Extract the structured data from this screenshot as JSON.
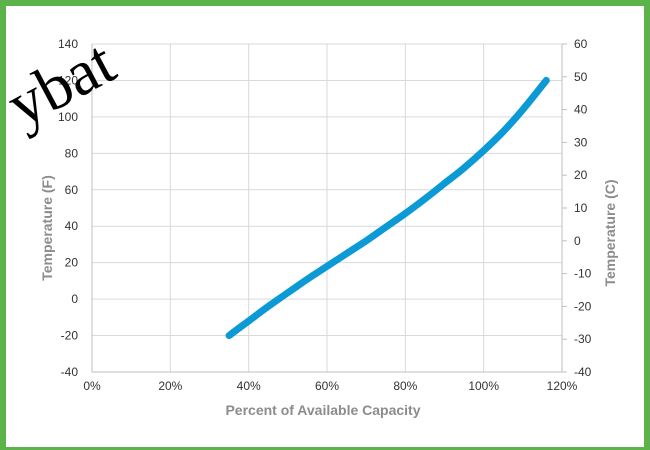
{
  "colors": {
    "frame": "#5cb34a",
    "series": "#0b9ad6",
    "grid": "#d9d9d9",
    "axis": "#bfbfbf",
    "watermark": "#000000"
  },
  "watermark": {
    "text": "ybat"
  },
  "chart_data": {
    "type": "line",
    "title": "",
    "xlabel": "Percent of Available Capacity",
    "ylabel": "Temperature (F)",
    "y2label": "Temperature (C)",
    "xlim": [
      0,
      120
    ],
    "ylim": [
      -40,
      140
    ],
    "y2lim": [
      -40,
      60
    ],
    "x_ticks": [
      0,
      20,
      40,
      60,
      80,
      100,
      120
    ],
    "x_tick_labels": [
      "0%",
      "20%",
      "40%",
      "60%",
      "80%",
      "100%",
      "120%"
    ],
    "y_ticks": [
      -40,
      -20,
      0,
      20,
      40,
      60,
      80,
      100,
      120,
      140
    ],
    "y_tick_labels": [
      "-40",
      "-20",
      "0",
      "20",
      "40",
      "60",
      "80",
      "100",
      "120",
      "140"
    ],
    "y2_ticks": [
      -40,
      -30,
      -20,
      -10,
      0,
      10,
      20,
      30,
      40,
      50,
      60
    ],
    "y2_tick_labels": [
      "-40",
      "-30",
      "-20",
      "-10",
      "0",
      "10",
      "20",
      "30",
      "40",
      "50",
      "60"
    ],
    "grid": true,
    "legend": "none",
    "series": [
      {
        "x": [
          35,
          40,
          45,
          50,
          55,
          60,
          65,
          70,
          75,
          80,
          85,
          90,
          95,
          100,
          105,
          110,
          116
        ],
        "y": [
          -20,
          -12,
          -4,
          3.5,
          11,
          18,
          25,
          32,
          39.5,
          47,
          55,
          63.5,
          72,
          81.5,
          92,
          104,
          120
        ]
      }
    ]
  }
}
